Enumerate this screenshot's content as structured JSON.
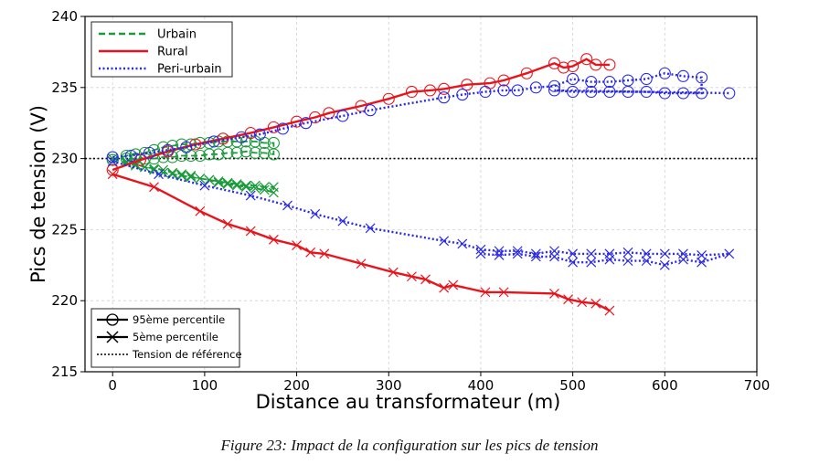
{
  "caption": "Figure 23: Impact de la configuration sur les pics de tension",
  "chart_data": {
    "type": "line",
    "xlabel": "Distance au transformateur (m)",
    "ylabel": "Pics de tension (V)",
    "xlim": [
      -30,
      700
    ],
    "ylim": [
      215,
      240
    ],
    "xticks": [
      0,
      100,
      200,
      300,
      400,
      500,
      600,
      700
    ],
    "yticks": [
      215,
      220,
      225,
      230,
      235,
      240
    ],
    "grid": true,
    "legend_config": {
      "position": "top-left",
      "entries": [
        {
          "label": "Urbain",
          "color": "#1a9a3a",
          "dash": "dashed"
        },
        {
          "label": "Rural",
          "color": "#e8141c",
          "dash": "solid"
        },
        {
          "label": "Peri-urbain",
          "color": "#2a2ae8",
          "dash": "dotted"
        }
      ]
    },
    "legend_stat": {
      "position": "bottom-left",
      "entries": [
        {
          "label": "95ème percentile",
          "marker": "circle"
        },
        {
          "label": "5ème percentile",
          "marker": "x"
        },
        {
          "label": "Tension de référence",
          "marker": "dotted-line"
        }
      ]
    },
    "reference_line": {
      "y": 230,
      "label": "Tension de référence"
    },
    "series": [
      {
        "name": "Urbain",
        "percentile": "95ème percentile",
        "marker": "circle",
        "color": "#1a9a3a",
        "x": [
          0,
          15,
          25,
          35,
          45,
          55,
          65,
          75,
          85,
          95,
          105,
          115,
          125,
          135,
          145,
          155,
          165,
          175,
          175,
          165,
          155,
          145,
          135,
          125,
          115,
          105,
          95,
          85,
          75,
          65,
          55,
          45,
          35,
          25,
          15
        ],
        "y": [
          229.9,
          230.2,
          230.3,
          230.4,
          230.6,
          230.8,
          230.9,
          231.0,
          231.0,
          231.1,
          231.1,
          231.2,
          231.2,
          231.2,
          231.2,
          231.2,
          231.1,
          231.1,
          230.3,
          230.4,
          230.4,
          230.5,
          230.4,
          230.4,
          230.3,
          230.3,
          230.2,
          230.2,
          230.2,
          230.1,
          230.1,
          230.0,
          230.0,
          230.0,
          230.0
        ]
      },
      {
        "name": "Urbain",
        "percentile": "5ème percentile",
        "marker": "x",
        "color": "#1a9a3a",
        "x": [
          0,
          15,
          25,
          35,
          45,
          55,
          65,
          75,
          85,
          95,
          105,
          115,
          125,
          135,
          145,
          155,
          165,
          175,
          175,
          165,
          155,
          145,
          135,
          125,
          115,
          105,
          95,
          85,
          75,
          65,
          55,
          45,
          35,
          25,
          15
        ],
        "y": [
          230.0,
          229.7,
          229.5,
          229.4,
          229.2,
          229.0,
          228.9,
          228.8,
          228.7,
          228.6,
          228.5,
          228.4,
          228.3,
          228.2,
          228.1,
          228.1,
          228.0,
          228.0,
          227.6,
          227.8,
          227.9,
          228.0,
          228.1,
          228.2,
          228.3,
          228.5,
          228.6,
          228.8,
          228.9,
          229.0,
          229.2,
          229.3,
          229.4,
          229.6,
          229.8
        ]
      },
      {
        "name": "Rural",
        "percentile": "95ème percentile",
        "marker": "circle",
        "color": "#e8141c",
        "x": [
          0,
          30,
          60,
          90,
          120,
          150,
          175,
          200,
          220,
          235,
          270,
          300,
          325,
          345,
          360,
          385,
          410,
          425,
          450,
          480,
          490,
          500,
          515,
          525,
          540
        ],
        "y": [
          229.2,
          229.9,
          230.5,
          231.0,
          231.4,
          231.8,
          232.2,
          232.6,
          232.9,
          233.2,
          233.7,
          234.2,
          234.7,
          234.8,
          234.9,
          235.2,
          235.3,
          235.5,
          236.0,
          236.7,
          236.4,
          236.5,
          237.0,
          236.6,
          236.6
        ]
      },
      {
        "name": "Rural",
        "percentile": "5ème percentile",
        "marker": "x",
        "color": "#e8141c",
        "x": [
          0,
          45,
          95,
          125,
          150,
          175,
          200,
          215,
          230,
          270,
          305,
          325,
          340,
          360,
          370,
          405,
          425,
          480,
          495,
          510,
          525,
          540
        ],
        "y": [
          228.9,
          228.0,
          226.3,
          225.4,
          224.9,
          224.3,
          223.9,
          223.4,
          223.3,
          222.6,
          222.0,
          221.7,
          221.5,
          220.9,
          221.1,
          220.6,
          220.6,
          220.5,
          220.1,
          219.9,
          219.8,
          219.3
        ]
      },
      {
        "name": "Peri-urbain",
        "percentile": "95ème percentile",
        "marker": "circle",
        "color": "#2a2ae8",
        "x": [
          0,
          20,
          40,
          60,
          80,
          110,
          140,
          160,
          185,
          210,
          250,
          280,
          360,
          380,
          405,
          425,
          440,
          460,
          480,
          500,
          520,
          540,
          560,
          580,
          600,
          620,
          640,
          640,
          620,
          600,
          580,
          560,
          540,
          520,
          500,
          480,
          670
        ],
        "y": [
          230.1,
          230.2,
          230.4,
          230.6,
          230.8,
          231.2,
          231.5,
          231.7,
          232.1,
          232.5,
          233.0,
          233.4,
          234.3,
          234.5,
          234.7,
          234.8,
          234.8,
          235.0,
          235.1,
          235.6,
          235.4,
          235.4,
          235.5,
          235.6,
          236.0,
          235.8,
          235.7,
          234.6,
          234.6,
          234.6,
          234.7,
          234.7,
          234.7,
          234.7,
          234.7,
          234.8,
          234.6
        ]
      },
      {
        "name": "Peri-urbain",
        "percentile": "5ème percentile",
        "marker": "x",
        "color": "#2a2ae8",
        "x": [
          0,
          50,
          100,
          150,
          190,
          220,
          250,
          280,
          360,
          380,
          400,
          420,
          440,
          460,
          480,
          500,
          520,
          540,
          560,
          580,
          600,
          620,
          640,
          670,
          640,
          620,
          600,
          580,
          560,
          540,
          520,
          500,
          480,
          460,
          440,
          420,
          400
        ],
        "y": [
          229.8,
          228.9,
          228.1,
          227.4,
          226.7,
          226.1,
          225.6,
          225.1,
          224.2,
          224.0,
          223.6,
          223.5,
          223.5,
          223.3,
          223.5,
          223.3,
          223.3,
          223.3,
          223.4,
          223.3,
          223.3,
          223.3,
          223.2,
          223.3,
          222.7,
          222.9,
          222.5,
          222.8,
          222.8,
          222.9,
          222.7,
          222.7,
          223.1,
          223.1,
          223.3,
          223.2,
          223.3
        ]
      }
    ]
  }
}
